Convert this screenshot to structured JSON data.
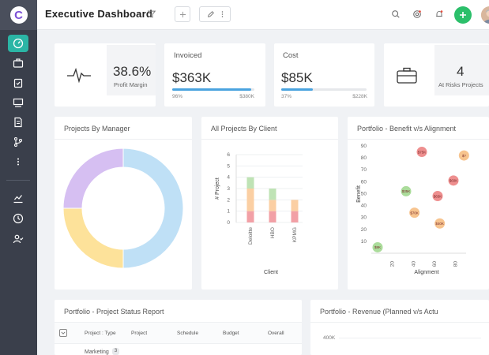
{
  "header": {
    "title": "Executive Dashboard"
  },
  "kpis": {
    "profit_margin": {
      "value": "38.6%",
      "label": "Profit Margin"
    },
    "invoiced": {
      "title": "Invoiced",
      "value": "$363K",
      "bar_percent": 96,
      "left": "96%",
      "right": "$380K"
    },
    "cost": {
      "title": "Cost",
      "value": "$85K",
      "bar_percent": 37,
      "left": "37%",
      "right": "$228K"
    },
    "at_risk": {
      "value": "4",
      "label": "At Risks Projects"
    }
  },
  "panels": {
    "by_manager": {
      "title": "Projects By Manager"
    },
    "by_client": {
      "title": "All Projects By Client"
    },
    "benefit": {
      "title": "Portfolio - Benefit v/s Alignment"
    },
    "status": {
      "title": "Portfolio - Project Status Report"
    },
    "revenue": {
      "title": "Portfolio - Revenue (Planned v/s Actu"
    }
  },
  "status_table": {
    "columns": [
      "Project : Type",
      "Project",
      "Schedule",
      "Budget",
      "Overall"
    ],
    "first_row": {
      "label": "Marketing",
      "count": "3"
    }
  },
  "revenue": {
    "tick": "400K"
  },
  "chart_data": [
    {
      "type": "pie",
      "variant": "donut",
      "title": "Projects By Manager",
      "slices": [
        {
          "value": 50,
          "color": "#bfe0f6"
        },
        {
          "value": 25,
          "color": "#fde29a"
        },
        {
          "value": 25,
          "color": "#d6bff2"
        }
      ]
    },
    {
      "type": "bar",
      "stacked": true,
      "title": "All Projects By Client",
      "xlabel": "Client",
      "ylabel": "# Project",
      "ylim": [
        0,
        6
      ],
      "yticks": [
        "0",
        "1",
        "2",
        "3",
        "4",
        "5",
        "6"
      ],
      "categories": [
        "Deloitte",
        "HBO",
        "KPMG"
      ],
      "series": [
        {
          "values": [
            1,
            1,
            1
          ],
          "color": "#f2a0a6"
        },
        {
          "values": [
            2,
            1,
            1
          ],
          "color": "#fbcfa3"
        },
        {
          "values": [
            1,
            0,
            0
          ],
          "color": "#bfe3b5"
        }
      ],
      "hbo_top": {
        "values": [
          0,
          1,
          0
        ],
        "color": "#bfe3b5"
      }
    },
    {
      "type": "scatter",
      "title": "Portfolio - Benefit v/s Alignment",
      "xlabel": "Alignment",
      "ylabel": "Benefit",
      "xlim": [
        0,
        90
      ],
      "ylim": [
        0,
        90
      ],
      "xticks": [
        "20",
        "40",
        "60",
        "80"
      ],
      "yticks": [
        "10",
        "20",
        "30",
        "40",
        "50",
        "60",
        "70",
        "80",
        "90"
      ],
      "points": [
        {
          "x": 48,
          "y": 85,
          "label": "$75K",
          "color": "#e86a6a"
        },
        {
          "x": 88,
          "y": 82,
          "label": "$?",
          "color": "#f4b06a"
        },
        {
          "x": 78,
          "y": 61,
          "label": "$60K",
          "color": "#e86a6a"
        },
        {
          "x": 33,
          "y": 52,
          "label": "$35K",
          "color": "#8fd07a"
        },
        {
          "x": 63,
          "y": 48,
          "label": "$65K",
          "color": "#e86a6a"
        },
        {
          "x": 41,
          "y": 34,
          "label": "$70K",
          "color": "#f4b06a"
        },
        {
          "x": 65,
          "y": 25,
          "label": "$40K",
          "color": "#f4b06a"
        },
        {
          "x": 6,
          "y": 5,
          "label": "$8K",
          "color": "#8fd07a"
        }
      ]
    }
  ]
}
